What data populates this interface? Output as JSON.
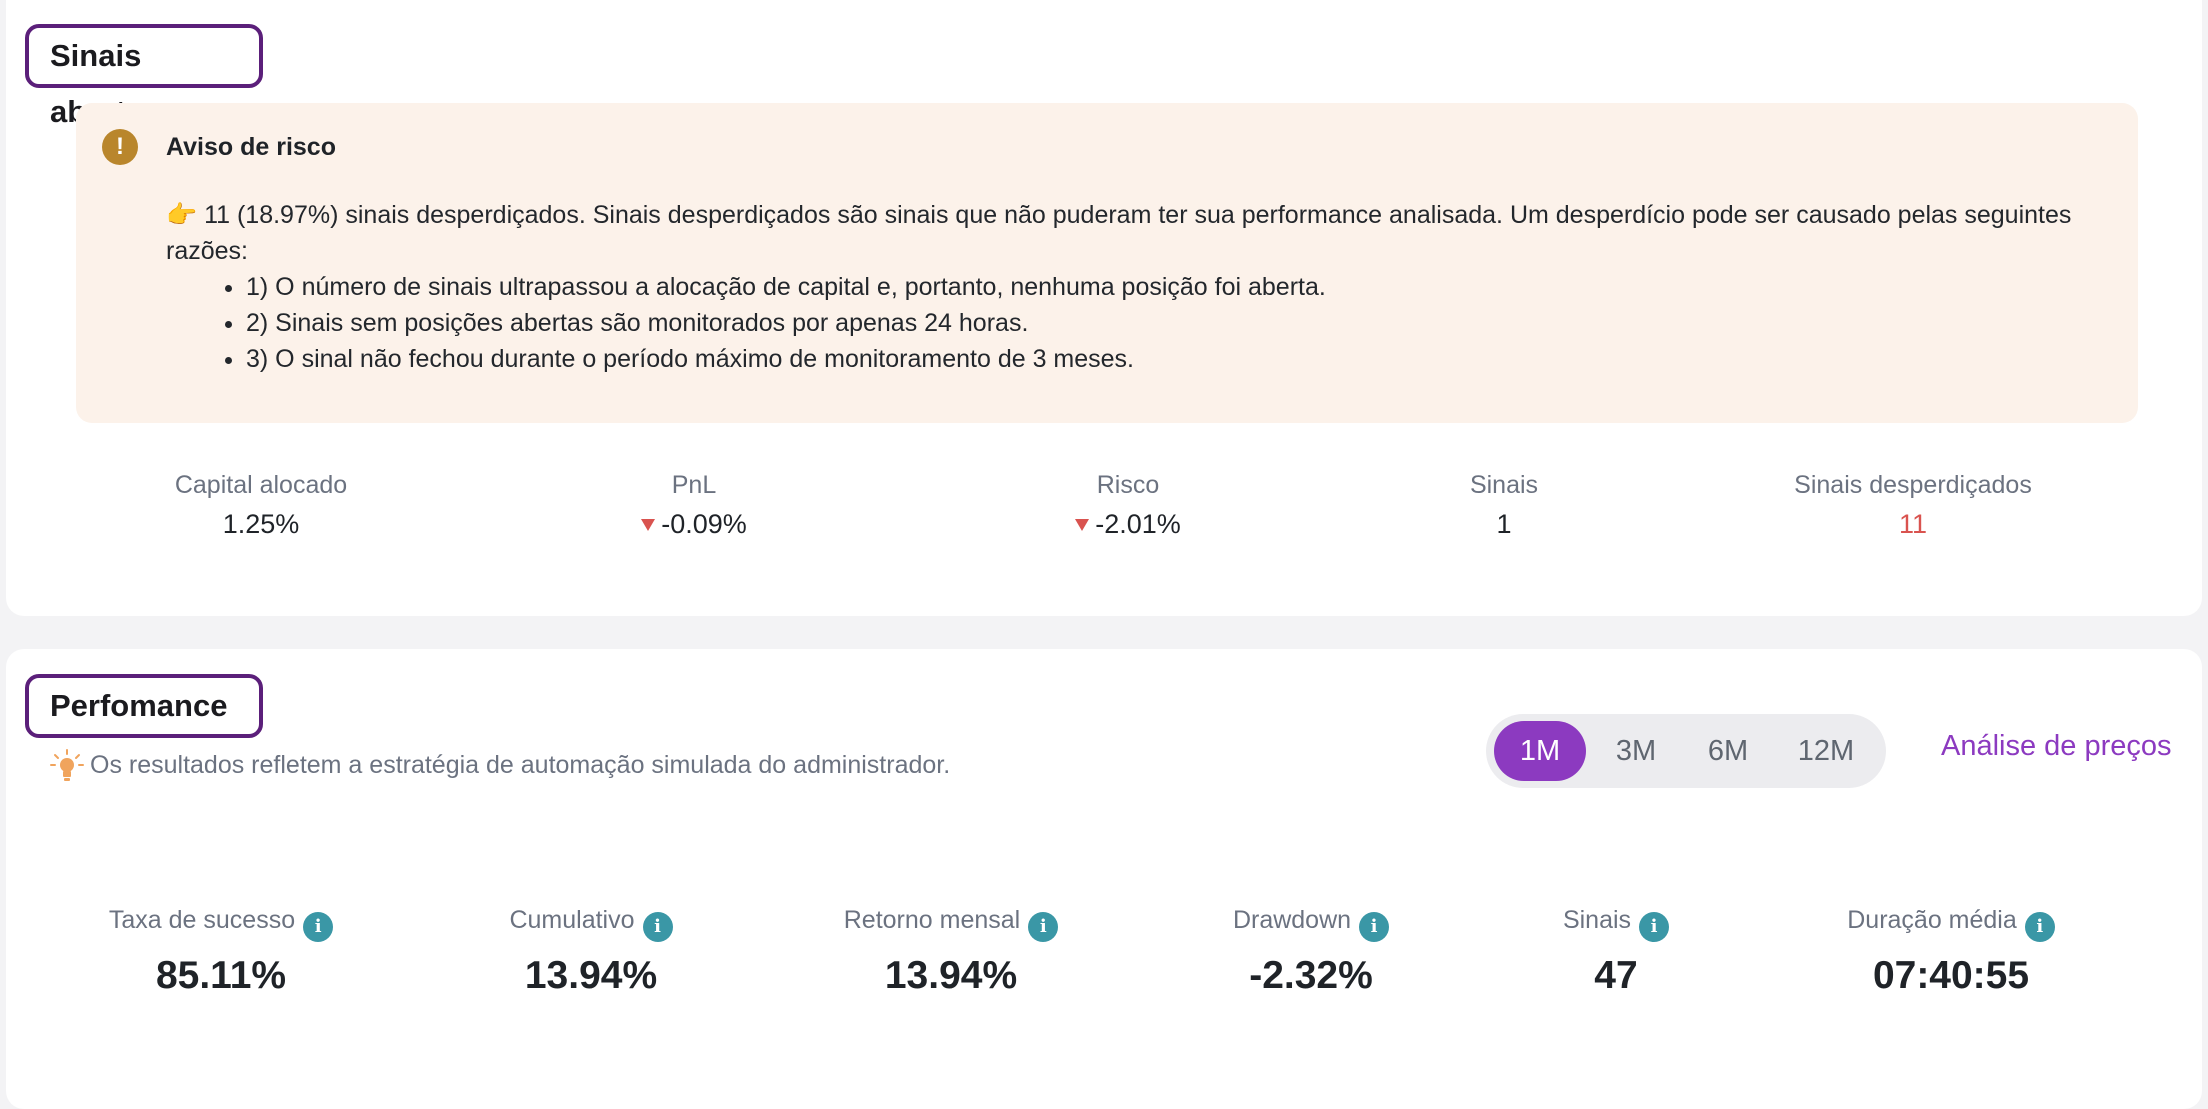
{
  "open_signals": {
    "title": "Sinais abertos",
    "warning": {
      "icon": "exclamation-icon",
      "title": "Aviso de risco",
      "intro": "👉 11 (18.97%) sinais desperdiçados. Sinais desperdiçados são sinais que não puderam ter sua performance analisada. Um desperdício pode ser causado pelas seguintes razões:",
      "reasons": [
        "1) O número de sinais ultrapassou a alocação de capital e, portanto, nenhuma posição foi aberta.",
        "2) Sinais sem posições abertas são monitorados por apenas 24 horas.",
        "3) O sinal não fechou durante o período máximo de monitoramento de 3 meses."
      ]
    },
    "stats": [
      {
        "label": "Capital alocado",
        "value": "1.25%"
      },
      {
        "label": "PnL",
        "value": "-0.09%"
      },
      {
        "label": "Risco",
        "value": "-2.01%"
      },
      {
        "label": "Sinais",
        "value": "1"
      },
      {
        "label": "Sinais desperdiçados",
        "value": "11"
      }
    ]
  },
  "performance": {
    "title": "Perfomance",
    "hint": "Os resultados refletem a estratégia de automação simulada do administrador.",
    "periods": [
      "1M",
      "3M",
      "6M",
      "12M"
    ],
    "selected_period": "1M",
    "price_analysis_link": "Análise de preços",
    "metrics": [
      {
        "label": "Taxa de sucesso",
        "value": "85.11%"
      },
      {
        "label": "Cumulativo",
        "value": "13.94%"
      },
      {
        "label": "Retorno mensal",
        "value": "13.94%"
      },
      {
        "label": "Drawdown",
        "value": "-2.32%"
      },
      {
        "label": "Sinais",
        "value": "47"
      },
      {
        "label": "Duração média",
        "value": "07:40:55"
      }
    ]
  },
  "colors": {
    "accent": "#8c3ac0",
    "title_border": "#5b1f7a",
    "warning_bg": "#fcf2ea",
    "negative": "#d9534f",
    "info": "#3a97a6"
  }
}
